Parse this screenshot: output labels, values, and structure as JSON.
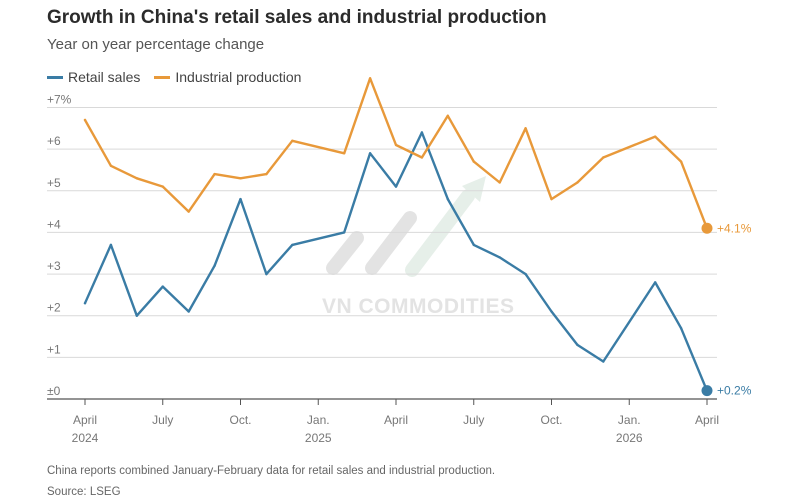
{
  "chart_data": {
    "type": "line",
    "title": "Growth in China's retail sales and industrial production",
    "subtitle": "Year on year percentage change",
    "y_ticks": [
      "±0",
      "+1",
      "+2",
      "+3",
      "+4",
      "+5",
      "+6",
      "+7%"
    ],
    "y_tick_values": [
      0,
      1,
      2,
      3,
      4,
      5,
      6,
      7
    ],
    "ylim": [
      0,
      7.3
    ],
    "x_range": [
      "2024-04",
      "2026-04"
    ],
    "x_ticks": [
      {
        "x": "2024-04",
        "line1": "April",
        "line2": "2024"
      },
      {
        "x": "2024-07",
        "line1": "July",
        "line2": ""
      },
      {
        "x": "2024-10",
        "line1": "Oct.",
        "line2": ""
      },
      {
        "x": "2025-01",
        "line1": "Jan.",
        "line2": "2025"
      },
      {
        "x": "2025-04",
        "line1": "April",
        "line2": ""
      },
      {
        "x": "2025-07",
        "line1": "July",
        "line2": ""
      },
      {
        "x": "2025-10",
        "line1": "Oct.",
        "line2": ""
      },
      {
        "x": "2026-01",
        "line1": "Jan.",
        "line2": "2026"
      },
      {
        "x": "2026-04",
        "line1": "April",
        "line2": ""
      }
    ],
    "series": [
      {
        "name": "Retail sales",
        "color": "#3a7ca5",
        "end_label": "+0.2%",
        "points": [
          [
            "2024-04",
            2.3
          ],
          [
            "2024-05",
            3.7
          ],
          [
            "2024-06",
            2.0
          ],
          [
            "2024-07",
            2.7
          ],
          [
            "2024-08",
            2.1
          ],
          [
            "2024-09",
            3.2
          ],
          [
            "2024-10",
            4.8
          ],
          [
            "2024-11",
            3.0
          ],
          [
            "2024-12",
            3.7
          ],
          [
            "2025-02",
            4.0
          ],
          [
            "2025-03",
            5.9
          ],
          [
            "2025-04",
            5.1
          ],
          [
            "2025-05",
            6.4
          ],
          [
            "2025-06",
            4.8
          ],
          [
            "2025-07",
            3.7
          ],
          [
            "2025-08",
            3.4
          ],
          [
            "2025-09",
            3.0
          ],
          [
            "2025-10",
            2.1
          ],
          [
            "2025-11",
            1.3
          ],
          [
            "2025-12",
            0.9
          ],
          [
            "2026-02",
            2.8
          ],
          [
            "2026-03",
            1.7
          ],
          [
            "2026-04",
            0.2
          ]
        ]
      },
      {
        "name": "Industrial production",
        "color": "#e8993a",
        "end_label": "+4.1%",
        "points": [
          [
            "2024-04",
            6.7
          ],
          [
            "2024-05",
            5.6
          ],
          [
            "2024-06",
            5.3
          ],
          [
            "2024-07",
            5.1
          ],
          [
            "2024-08",
            4.5
          ],
          [
            "2024-09",
            5.4
          ],
          [
            "2024-10",
            5.3
          ],
          [
            "2024-11",
            5.4
          ],
          [
            "2024-12",
            6.2
          ],
          [
            "2025-02",
            5.9
          ],
          [
            "2025-03",
            7.7
          ],
          [
            "2025-04",
            6.1
          ],
          [
            "2025-05",
            5.8
          ],
          [
            "2025-06",
            6.8
          ],
          [
            "2025-07",
            5.7
          ],
          [
            "2025-08",
            5.2
          ],
          [
            "2025-09",
            6.5
          ],
          [
            "2025-10",
            4.8
          ],
          [
            "2025-11",
            5.2
          ],
          [
            "2025-12",
            5.8
          ],
          [
            "2026-02",
            6.3
          ],
          [
            "2026-03",
            5.7
          ],
          [
            "2026-04",
            4.1
          ]
        ]
      }
    ],
    "legend_placement": "top-left",
    "grid": true
  },
  "watermark": "VN COMMODITIES",
  "footnote": "China reports combined January-February data for retail sales and industrial production.",
  "source": "Source: LSEG"
}
